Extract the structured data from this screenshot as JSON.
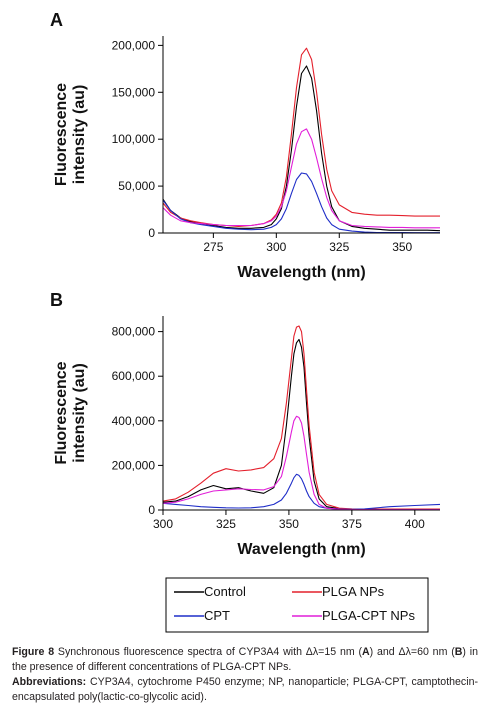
{
  "chart_data": [
    {
      "type": "line",
      "panel_label": "A",
      "xlabel": "Wavelength (nm)",
      "ylabel": "Fluorescence intensity (au)",
      "ylabel_lines": [
        "Fluorescence",
        "intensity (au)"
      ],
      "xlim": [
        255,
        365
      ],
      "ylim": [
        0,
        210000
      ],
      "x_ticks": [
        275,
        300,
        325,
        350
      ],
      "x_tick_labels": [
        "275",
        "300",
        "325",
        "350"
      ],
      "y_ticks": [
        0,
        50000,
        100000,
        150000,
        200000
      ],
      "y_tick_labels": [
        "0",
        "50,000",
        "100,000",
        "150,000",
        "200,000"
      ],
      "grid": false,
      "series": [
        {
          "name": "Control",
          "color": "#000000",
          "x": [
            255,
            258,
            262,
            266,
            270,
            275,
            280,
            285,
            290,
            295,
            298,
            300,
            302,
            304,
            306,
            308,
            310,
            312,
            314,
            316,
            318,
            320,
            322,
            325,
            330,
            335,
            340,
            345,
            350,
            355,
            360,
            365
          ],
          "y": [
            36000,
            24000,
            16000,
            12000,
            10000,
            8000,
            6000,
            5000,
            5000,
            6000,
            9000,
            15000,
            26000,
            50000,
            88000,
            135000,
            170000,
            178000,
            165000,
            130000,
            85000,
            50000,
            28000,
            13000,
            7000,
            5000,
            4000,
            3000,
            3000,
            3000,
            3000,
            2500
          ]
        },
        {
          "name": "PLGA NPs",
          "color": "#e4202c",
          "x": [
            255,
            258,
            262,
            266,
            270,
            275,
            280,
            285,
            290,
            295,
            298,
            300,
            302,
            304,
            306,
            308,
            310,
            312,
            314,
            316,
            318,
            320,
            322,
            325,
            330,
            335,
            340,
            345,
            350,
            355,
            360,
            365
          ],
          "y": [
            32000,
            22000,
            16000,
            13000,
            11000,
            9000,
            8000,
            7000,
            8000,
            10000,
            14000,
            20000,
            32000,
            60000,
            105000,
            155000,
            190000,
            197000,
            185000,
            150000,
            105000,
            68000,
            45000,
            30000,
            22000,
            20000,
            19000,
            19000,
            18500,
            18000,
            18000,
            18000
          ]
        },
        {
          "name": "CPT",
          "color": "#1f2ec8",
          "x": [
            255,
            258,
            262,
            266,
            270,
            275,
            280,
            285,
            290,
            295,
            298,
            300,
            302,
            304,
            306,
            308,
            310,
            312,
            314,
            316,
            318,
            320,
            322,
            325,
            330,
            335,
            340,
            345,
            350,
            355,
            360,
            365
          ],
          "y": [
            35000,
            24000,
            15000,
            11000,
            9000,
            7000,
            5000,
            4000,
            3500,
            4000,
            6000,
            9000,
            15000,
            26000,
            42000,
            57000,
            64000,
            63000,
            55000,
            42000,
            28000,
            16000,
            9000,
            4000,
            2000,
            1000,
            500,
            500,
            500,
            300,
            300,
            300
          ]
        },
        {
          "name": "PLGA-CPT NPs",
          "color": "#e11fd8",
          "x": [
            255,
            258,
            262,
            266,
            270,
            275,
            280,
            285,
            290,
            295,
            298,
            300,
            302,
            304,
            306,
            308,
            310,
            312,
            314,
            316,
            318,
            320,
            322,
            325,
            330,
            335,
            340,
            345,
            350,
            355,
            360,
            365
          ],
          "y": [
            27000,
            19000,
            13000,
            11000,
            10000,
            9000,
            8000,
            8000,
            8000,
            10000,
            13000,
            18000,
            28000,
            45000,
            70000,
            95000,
            108000,
            111000,
            100000,
            80000,
            58000,
            38000,
            24000,
            13000,
            8000,
            7000,
            6500,
            6000,
            6000,
            5500,
            5500,
            5500
          ]
        }
      ]
    },
    {
      "type": "line",
      "panel_label": "B",
      "xlabel": "Wavelength (nm)",
      "ylabel": "Fluorescence intensity (au)",
      "ylabel_lines": [
        "Fluorescence",
        "intensity (au)"
      ],
      "xlim": [
        300,
        410
      ],
      "ylim": [
        0,
        870000
      ],
      "x_ticks": [
        300,
        325,
        350,
        375,
        400
      ],
      "x_tick_labels": [
        "300",
        "325",
        "350",
        "375",
        "400"
      ],
      "y_ticks": [
        0,
        200000,
        400000,
        600000,
        800000
      ],
      "y_tick_labels": [
        "0",
        "200,000",
        "400,000",
        "600,000",
        "800,000"
      ],
      "grid": false,
      "series": [
        {
          "name": "Control",
          "color": "#000000",
          "x": [
            300,
            305,
            310,
            315,
            320,
            325,
            330,
            335,
            340,
            344,
            347,
            349,
            351,
            352,
            353,
            354,
            355,
            356,
            357,
            358,
            360,
            362,
            365,
            370,
            375,
            380,
            390,
            400,
            410
          ],
          "y": [
            35000,
            40000,
            60000,
            90000,
            110000,
            95000,
            100000,
            85000,
            75000,
            100000,
            200000,
            380000,
            600000,
            700000,
            750000,
            765000,
            730000,
            640000,
            480000,
            330000,
            130000,
            50000,
            15000,
            6000,
            3000,
            2000,
            2000,
            2000,
            2000
          ]
        },
        {
          "name": "PLGA NPs",
          "color": "#e4202c",
          "x": [
            300,
            305,
            310,
            315,
            320,
            325,
            330,
            335,
            340,
            344,
            347,
            349,
            351,
            352,
            353,
            354,
            355,
            356,
            357,
            358,
            360,
            362,
            365,
            370,
            375,
            380,
            390,
            400,
            410
          ],
          "y": [
            40000,
            50000,
            80000,
            120000,
            165000,
            185000,
            175000,
            180000,
            190000,
            230000,
            320000,
            480000,
            680000,
            780000,
            820000,
            825000,
            800000,
            700000,
            540000,
            380000,
            170000,
            70000,
            25000,
            8000,
            5000,
            4000,
            4000,
            4000,
            4000
          ]
        },
        {
          "name": "CPT",
          "color": "#1f2ec8",
          "x": [
            300,
            305,
            310,
            315,
            320,
            325,
            330,
            335,
            340,
            344,
            347,
            349,
            351,
            352,
            353,
            354,
            355,
            356,
            357,
            358,
            360,
            362,
            365,
            370,
            375,
            380,
            390,
            400,
            410
          ],
          "y": [
            30000,
            25000,
            20000,
            15000,
            12000,
            10000,
            9000,
            10000,
            15000,
            25000,
            45000,
            75000,
            120000,
            145000,
            160000,
            155000,
            140000,
            115000,
            85000,
            60000,
            30000,
            15000,
            8000,
            4000,
            3000,
            5000,
            15000,
            20000,
            25000
          ]
        },
        {
          "name": "PLGA-CPT NPs",
          "color": "#e11fd8",
          "x": [
            300,
            305,
            310,
            315,
            320,
            325,
            330,
            335,
            340,
            344,
            347,
            349,
            351,
            352,
            353,
            354,
            355,
            356,
            357,
            358,
            360,
            362,
            365,
            370,
            375,
            380,
            390,
            400,
            410
          ],
          "y": [
            30000,
            35000,
            50000,
            70000,
            85000,
            90000,
            95000,
            92000,
            90000,
            105000,
            150000,
            240000,
            350000,
            400000,
            420000,
            415000,
            390000,
            330000,
            250000,
            170000,
            70000,
            25000,
            8000,
            3000,
            2000,
            2000,
            2000,
            2000,
            2000
          ]
        }
      ]
    }
  ],
  "legend": {
    "items": [
      {
        "label": "Control",
        "color": "#000000"
      },
      {
        "label": "PLGA NPs",
        "color": "#e4202c"
      },
      {
        "label": "CPT",
        "color": "#1f2ec8"
      },
      {
        "label": "PLGA-CPT NPs",
        "color": "#e11fd8"
      }
    ]
  },
  "caption": {
    "figure_label": "Figure 8",
    "text_part1": " Synchronous fluorescence spectra of CYP3A4 with Δλ=15 nm (",
    "bold_a": "A",
    "text_part2": ") and Δλ=60 nm (",
    "bold_b": "B",
    "text_part3": ") in the presence of different concentrations of PLGA-CPT NPs.",
    "abbrev_label": "Abbreviations:",
    "abbrev_text": " CYP3A4, cytochrome P450 enzyme; NP, nanoparticle; PLGA-CPT, camptothecin-encapsulated poly(lactic-co-glycolic acid)."
  }
}
